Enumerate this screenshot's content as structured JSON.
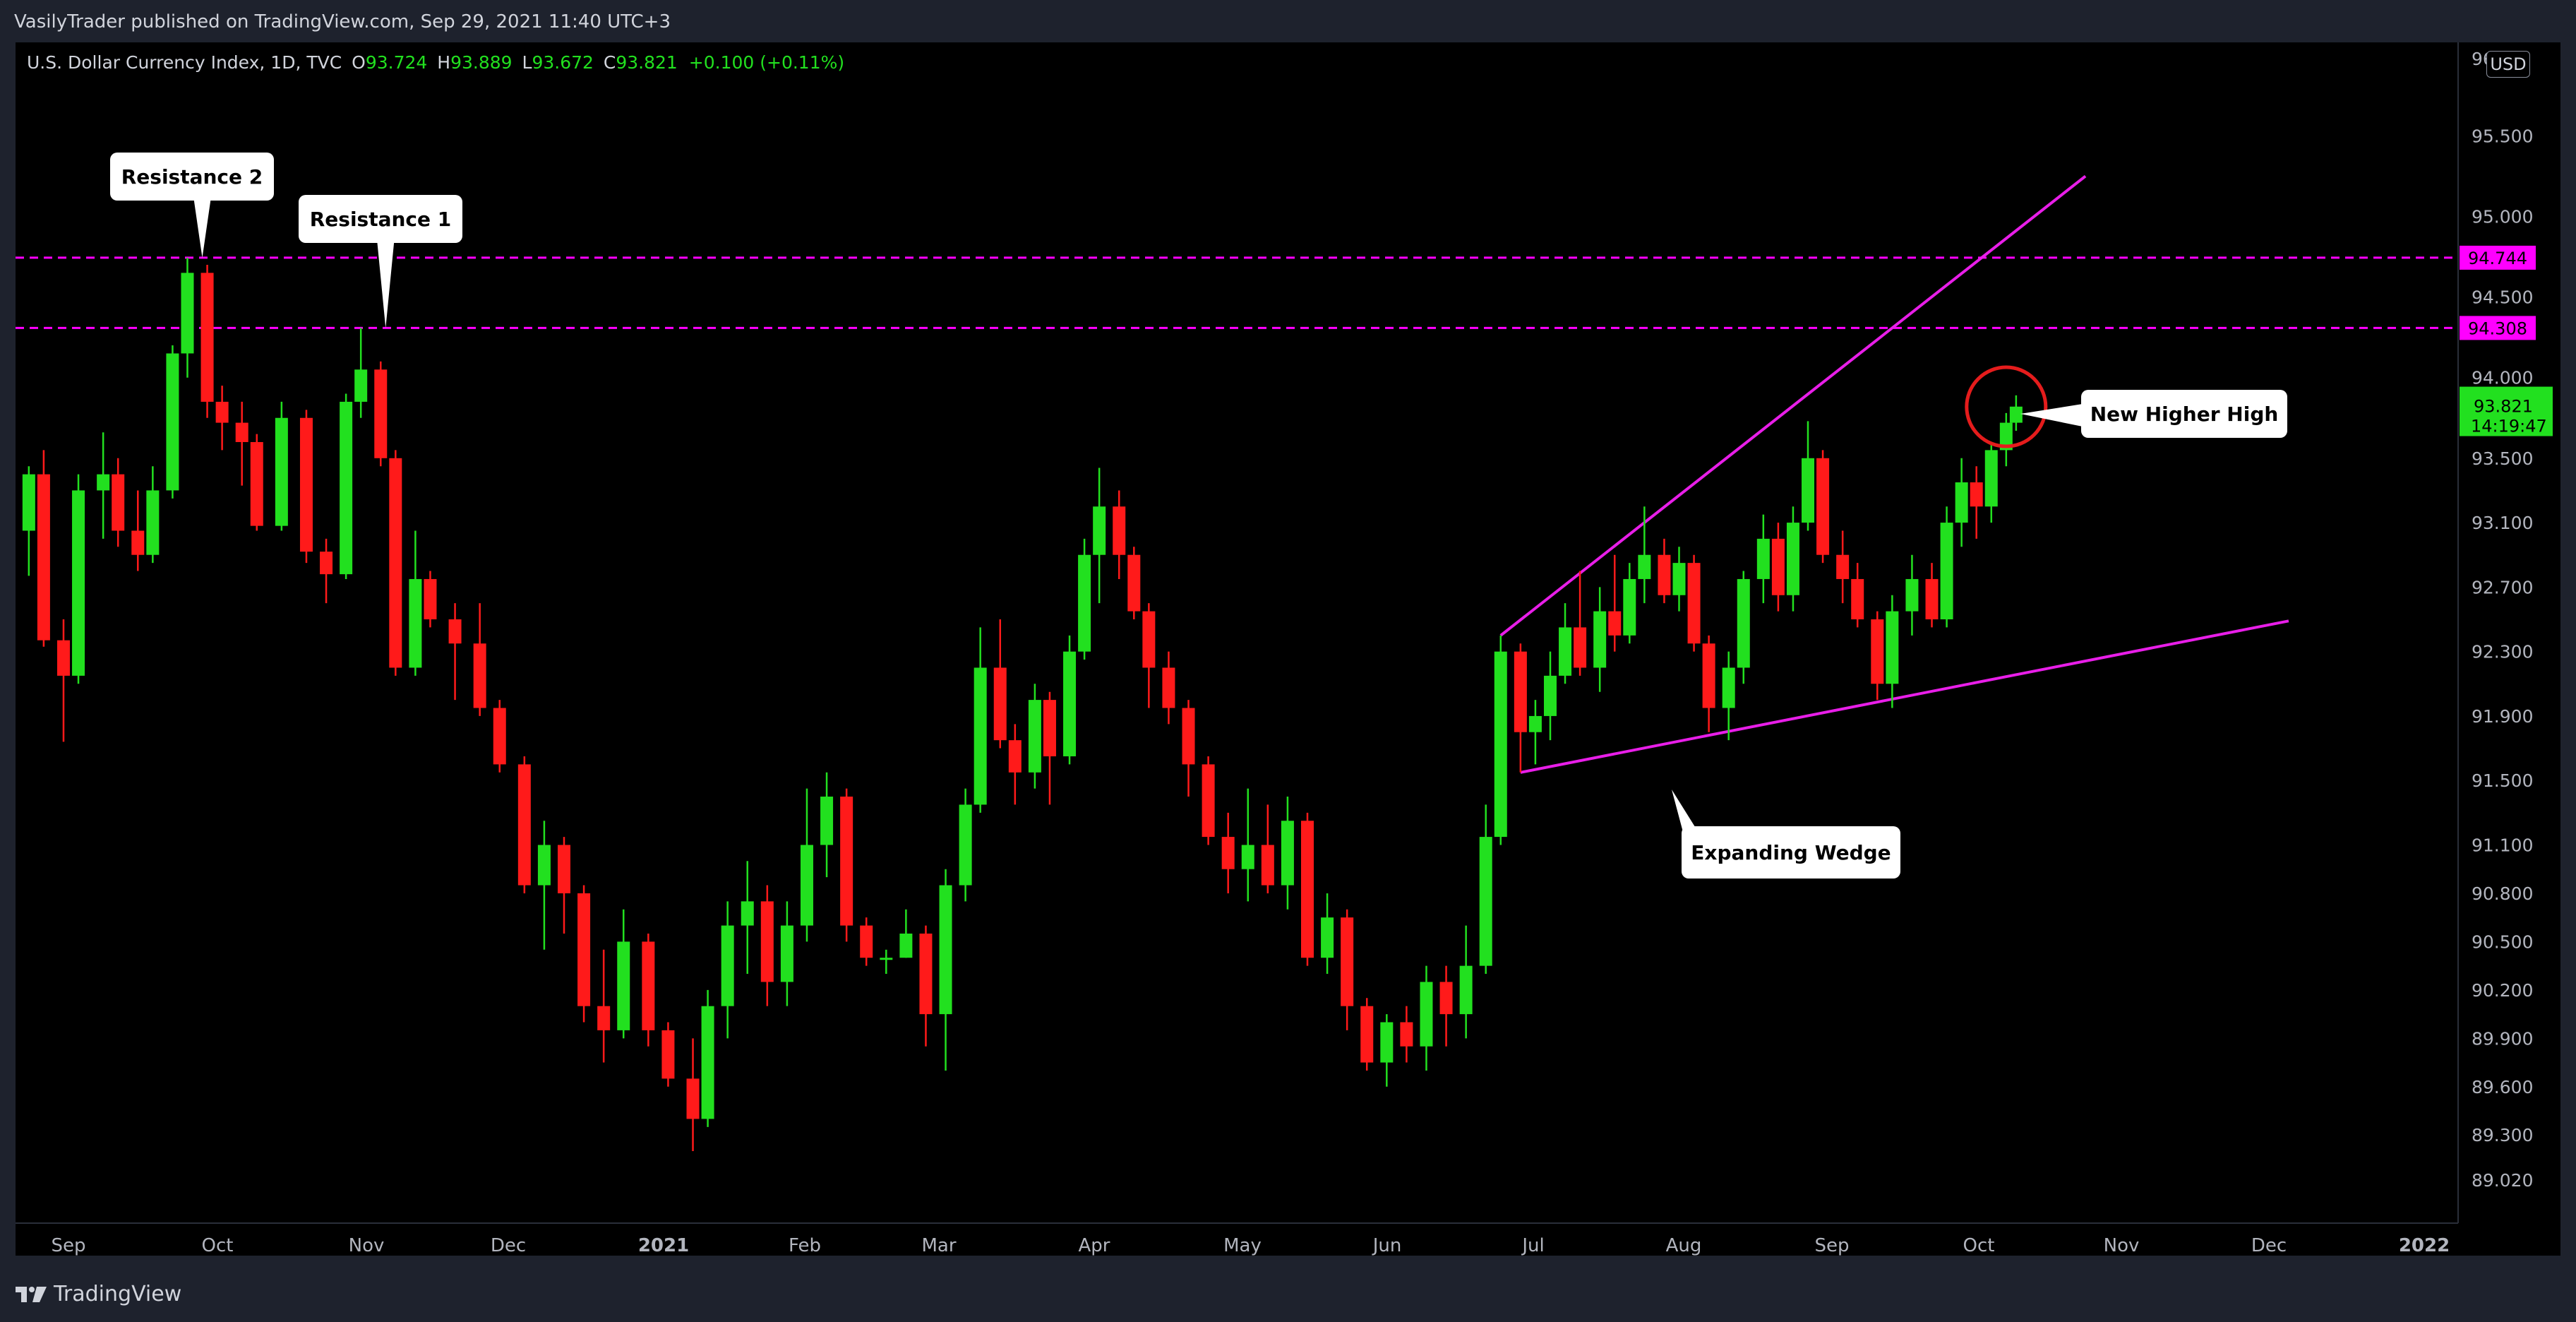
{
  "header": {
    "published_by": "VasilyTrader published on TradingView.com, Sep 29, 2021 11:40 UTC+3"
  },
  "legend": {
    "symbol": "U.S. Dollar Currency Index, 1D, TVC",
    "open_label": "O",
    "open": "93.724",
    "high_label": "H",
    "high": "93.889",
    "low_label": "L",
    "low": "93.672",
    "close_label": "C",
    "close": "93.821",
    "change": "+0.100 (+0.11%)"
  },
  "currency_button": "USD",
  "footer": {
    "brand": "TradingView"
  },
  "colors": {
    "background": "#000000",
    "up": "#22e01f",
    "down": "#ff1a1a",
    "level_line": "#ff00ff",
    "wedge_line": "#e81ee8",
    "circle": "#e51c1c",
    "last_price_bg": "#22e01f"
  },
  "chart_data": {
    "type": "candlestick",
    "symbol": "U.S. Dollar Currency Index",
    "interval": "1D",
    "x_axis_ticks": [
      "Sep",
      "Oct",
      "Nov",
      "Dec",
      "2021",
      "Feb",
      "Mar",
      "Apr",
      "May",
      "Jun",
      "Jul",
      "Aug",
      "Sep",
      "Oct",
      "Nov",
      "Dec",
      "2022"
    ],
    "y_axis_ticks": [
      "95.500",
      "95.000",
      "94.500",
      "94.000",
      "93.500",
      "93.100",
      "92.700",
      "92.300",
      "91.900",
      "91.500",
      "91.100",
      "90.800",
      "90.500",
      "90.200",
      "89.900",
      "89.600",
      "89.300",
      "89.020"
    ],
    "y_axis_top_partial": "96",
    "ylim": [
      88.9,
      96.1
    ],
    "horizontal_levels": [
      {
        "price": 94.744,
        "label": "94.744"
      },
      {
        "price": 94.308,
        "label": "94.308"
      }
    ],
    "last_price": {
      "value": "93.821",
      "countdown": "14:19:47"
    },
    "annotations": [
      {
        "text": "Resistance 2",
        "date": "2020-09-28",
        "price": 94.744
      },
      {
        "text": "Resistance 1",
        "date": "2020-11-04",
        "price": 94.308
      },
      {
        "text": "New Higher High",
        "date": "2021-09-29",
        "price": 93.89
      },
      {
        "text": "Expanding Wedge",
        "date": "2021-08-05",
        "price": 91.5
      }
    ],
    "wedge_upper": {
      "start": {
        "date": "2021-06-17",
        "price": 92.4
      },
      "end": {
        "date": "2021-10-13",
        "price": 95.25
      }
    },
    "wedge_lower": {
      "start": {
        "date": "2021-06-21",
        "price": 91.55
      },
      "end": {
        "date": "2021-11-23",
        "price": 92.49
      }
    },
    "circle_marker": {
      "date": "2021-09-27",
      "price": 93.81
    },
    "candles": [
      [
        "2020-08-24",
        93.05,
        93.45,
        92.77,
        93.4
      ],
      [
        "2020-08-27",
        93.4,
        93.55,
        92.33,
        92.37
      ],
      [
        "2020-08-31",
        92.37,
        92.5,
        91.74,
        92.15
      ],
      [
        "2020-09-03",
        92.15,
        93.4,
        92.1,
        93.3
      ],
      [
        "2020-09-08",
        93.3,
        93.66,
        93.0,
        93.4
      ],
      [
        "2020-09-11",
        93.4,
        93.5,
        92.95,
        93.05
      ],
      [
        "2020-09-15",
        93.05,
        93.3,
        92.8,
        92.9
      ],
      [
        "2020-09-18",
        92.9,
        93.45,
        92.85,
        93.3
      ],
      [
        "2020-09-22",
        93.3,
        94.2,
        93.25,
        94.15
      ],
      [
        "2020-09-25",
        94.15,
        94.744,
        94.0,
        94.65
      ],
      [
        "2020-09-29",
        94.65,
        94.7,
        93.75,
        93.85
      ],
      [
        "2020-10-02",
        93.85,
        93.95,
        93.55,
        93.72
      ],
      [
        "2020-10-06",
        93.72,
        93.85,
        93.33,
        93.6
      ],
      [
        "2020-10-09",
        93.6,
        93.65,
        93.05,
        93.08
      ],
      [
        "2020-10-14",
        93.08,
        93.85,
        93.05,
        93.75
      ],
      [
        "2020-10-19",
        93.75,
        93.8,
        92.85,
        92.92
      ],
      [
        "2020-10-23",
        92.92,
        93.0,
        92.6,
        92.78
      ],
      [
        "2020-10-27",
        92.78,
        93.9,
        92.75,
        93.85
      ],
      [
        "2020-10-30",
        93.85,
        94.308,
        93.75,
        94.05
      ],
      [
        "2020-11-03",
        94.05,
        94.1,
        93.45,
        93.5
      ],
      [
        "2020-11-06",
        93.5,
        93.55,
        92.15,
        92.2
      ],
      [
        "2020-11-10",
        92.2,
        93.05,
        92.15,
        92.75
      ],
      [
        "2020-11-13",
        92.75,
        92.8,
        92.45,
        92.5
      ],
      [
        "2020-11-18",
        92.5,
        92.6,
        92.0,
        92.35
      ],
      [
        "2020-11-23",
        92.35,
        92.6,
        91.9,
        91.95
      ],
      [
        "2020-11-27",
        91.95,
        92.0,
        91.55,
        91.6
      ],
      [
        "2020-12-02",
        91.6,
        91.65,
        90.8,
        90.85
      ],
      [
        "2020-12-06",
        90.85,
        91.25,
        90.45,
        91.1
      ],
      [
        "2020-12-10",
        91.1,
        91.15,
        90.55,
        90.8
      ],
      [
        "2020-12-14",
        90.8,
        90.85,
        90.0,
        90.1
      ],
      [
        "2020-12-18",
        90.1,
        90.45,
        89.75,
        89.95
      ],
      [
        "2020-12-22",
        89.95,
        90.7,
        89.9,
        90.5
      ],
      [
        "2020-12-27",
        90.5,
        90.55,
        89.85,
        89.95
      ],
      [
        "2020-12-31",
        89.95,
        90.0,
        89.6,
        89.65
      ],
      [
        "2021-01-05",
        89.65,
        89.9,
        89.2,
        89.4
      ],
      [
        "2021-01-08",
        89.4,
        90.2,
        89.35,
        90.1
      ],
      [
        "2021-01-12",
        90.1,
        90.75,
        89.9,
        90.6
      ],
      [
        "2021-01-16",
        90.6,
        91.0,
        90.3,
        90.75
      ],
      [
        "2021-01-20",
        90.75,
        90.85,
        90.1,
        90.25
      ],
      [
        "2021-01-24",
        90.25,
        90.75,
        90.1,
        90.6
      ],
      [
        "2021-01-28",
        90.6,
        91.45,
        90.5,
        91.1
      ],
      [
        "2021-02-01",
        91.1,
        91.55,
        90.9,
        91.4
      ],
      [
        "2021-02-05",
        91.4,
        91.45,
        90.5,
        90.6
      ],
      [
        "2021-02-09",
        90.6,
        90.65,
        90.35,
        90.4
      ],
      [
        "2021-02-13",
        90.4,
        90.45,
        90.3,
        90.4
      ],
      [
        "2021-02-17",
        90.4,
        90.7,
        90.4,
        90.55
      ],
      [
        "2021-02-21",
        90.55,
        90.6,
        89.85,
        90.05
      ],
      [
        "2021-02-25",
        90.05,
        90.95,
        89.7,
        90.85
      ],
      [
        "2021-03-01",
        90.85,
        91.45,
        90.75,
        91.35
      ],
      [
        "2021-03-04",
        91.35,
        92.45,
        91.3,
        92.2
      ],
      [
        "2021-03-08",
        92.2,
        92.5,
        91.7,
        91.75
      ],
      [
        "2021-03-11",
        91.75,
        91.85,
        91.35,
        91.55
      ],
      [
        "2021-03-15",
        91.55,
        92.1,
        91.45,
        92.0
      ],
      [
        "2021-03-18",
        92.0,
        92.05,
        91.35,
        91.65
      ],
      [
        "2021-03-22",
        91.65,
        92.4,
        91.6,
        92.3
      ],
      [
        "2021-03-25",
        92.3,
        93.0,
        92.25,
        92.9
      ],
      [
        "2021-03-28",
        92.9,
        93.44,
        92.6,
        93.2
      ],
      [
        "2021-04-01",
        93.2,
        93.3,
        92.75,
        92.9
      ],
      [
        "2021-04-04",
        92.9,
        92.95,
        92.5,
        92.55
      ],
      [
        "2021-04-07",
        92.55,
        92.6,
        91.95,
        92.2
      ],
      [
        "2021-04-11",
        92.2,
        92.3,
        91.85,
        91.95
      ],
      [
        "2021-04-15",
        91.95,
        92.0,
        91.4,
        91.6
      ],
      [
        "2021-04-19",
        91.6,
        91.65,
        91.1,
        91.15
      ],
      [
        "2021-04-23",
        91.15,
        91.3,
        90.8,
        90.95
      ],
      [
        "2021-04-27",
        90.95,
        91.45,
        90.75,
        91.1
      ],
      [
        "2021-05-01",
        91.1,
        91.35,
        90.8,
        90.85
      ],
      [
        "2021-05-05",
        90.85,
        91.4,
        90.7,
        91.25
      ],
      [
        "2021-05-09",
        91.25,
        91.3,
        90.35,
        90.4
      ],
      [
        "2021-05-13",
        90.4,
        90.8,
        90.3,
        90.65
      ],
      [
        "2021-05-17",
        90.65,
        90.7,
        89.95,
        90.1
      ],
      [
        "2021-05-21",
        90.1,
        90.15,
        89.7,
        89.75
      ],
      [
        "2021-05-25",
        89.75,
        90.05,
        89.6,
        90.0
      ],
      [
        "2021-05-29",
        90.0,
        90.1,
        89.75,
        89.85
      ],
      [
        "2021-06-02",
        89.85,
        90.35,
        89.7,
        90.25
      ],
      [
        "2021-06-06",
        90.25,
        90.35,
        89.85,
        90.05
      ],
      [
        "2021-06-10",
        90.05,
        90.6,
        89.9,
        90.35
      ],
      [
        "2021-06-14",
        90.35,
        91.35,
        90.3,
        91.15
      ],
      [
        "2021-06-17",
        91.15,
        92.4,
        91.1,
        92.3
      ],
      [
        "2021-06-21",
        92.3,
        92.35,
        91.55,
        91.8
      ],
      [
        "2021-06-24",
        91.8,
        92.0,
        91.6,
        91.9
      ],
      [
        "2021-06-27",
        91.9,
        92.3,
        91.75,
        92.15
      ],
      [
        "2021-06-30",
        92.15,
        92.6,
        92.1,
        92.45
      ],
      [
        "2021-07-03",
        92.45,
        92.8,
        92.15,
        92.2
      ],
      [
        "2021-07-07",
        92.2,
        92.7,
        92.05,
        92.55
      ],
      [
        "2021-07-10",
        92.55,
        92.9,
        92.3,
        92.4
      ],
      [
        "2021-07-13",
        92.4,
        92.85,
        92.35,
        92.75
      ],
      [
        "2021-07-16",
        92.75,
        93.2,
        92.6,
        92.9
      ],
      [
        "2021-07-20",
        92.9,
        93.0,
        92.6,
        92.65
      ],
      [
        "2021-07-23",
        92.65,
        92.95,
        92.55,
        92.85
      ],
      [
        "2021-07-26",
        92.85,
        92.9,
        92.3,
        92.35
      ],
      [
        "2021-07-29",
        92.35,
        92.4,
        91.8,
        91.95
      ],
      [
        "2021-08-02",
        91.95,
        92.3,
        91.75,
        92.2
      ],
      [
        "2021-08-05",
        92.2,
        92.8,
        92.1,
        92.75
      ],
      [
        "2021-08-09",
        92.75,
        93.15,
        92.6,
        93.0
      ],
      [
        "2021-08-12",
        93.0,
        93.1,
        92.55,
        92.65
      ],
      [
        "2021-08-15",
        92.65,
        93.2,
        92.55,
        93.1
      ],
      [
        "2021-08-18",
        93.1,
        93.73,
        93.05,
        93.5
      ],
      [
        "2021-08-21",
        93.5,
        93.55,
        92.85,
        92.9
      ],
      [
        "2021-08-25",
        92.9,
        93.05,
        92.6,
        92.75
      ],
      [
        "2021-08-28",
        92.75,
        92.85,
        92.45,
        92.5
      ],
      [
        "2021-09-01",
        92.5,
        92.55,
        92.0,
        92.1
      ],
      [
        "2021-09-04",
        92.1,
        92.65,
        91.95,
        92.55
      ],
      [
        "2021-09-08",
        92.55,
        92.9,
        92.4,
        92.75
      ],
      [
        "2021-09-12",
        92.75,
        92.85,
        92.45,
        92.5
      ],
      [
        "2021-09-15",
        92.5,
        93.2,
        92.45,
        93.1
      ],
      [
        "2021-09-18",
        93.1,
        93.5,
        92.95,
        93.35
      ],
      [
        "2021-09-21",
        93.35,
        93.45,
        93.0,
        93.2
      ],
      [
        "2021-09-24",
        93.2,
        93.6,
        93.1,
        93.55
      ],
      [
        "2021-09-27",
        93.55,
        93.78,
        93.45,
        93.72
      ],
      [
        "2021-09-29",
        93.72,
        93.89,
        93.67,
        93.82
      ]
    ]
  }
}
